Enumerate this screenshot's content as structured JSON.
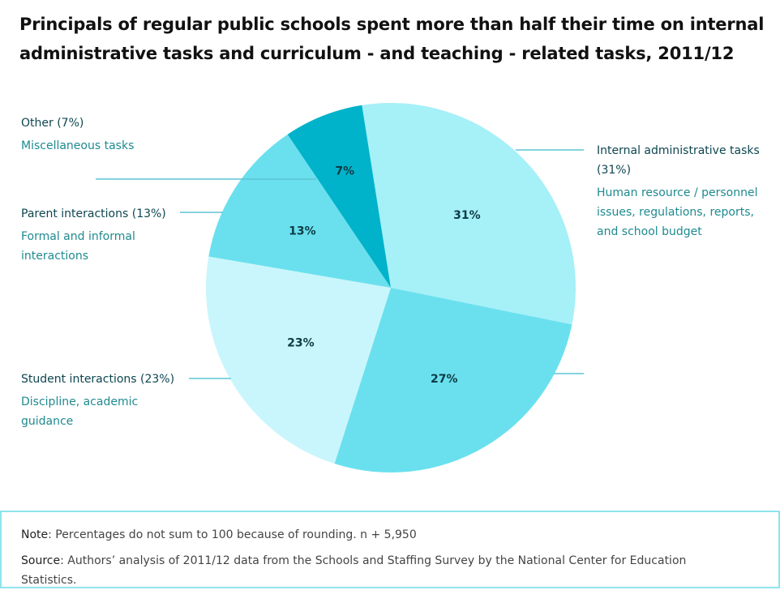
{
  "title": "Principals of regular public schools spent more than half their time on internal administrative tasks and curriculum - and teaching - related tasks, 2011/12",
  "chart_data": {
    "type": "pie",
    "slices": [
      {
        "label": "Internal administrative tasks (31%)",
        "description": "Human resource / personnel issues, regulations, reports, and school budget",
        "value": 31,
        "data_label": "31%",
        "color": "#a6f0f8"
      },
      {
        "label": "",
        "description": "",
        "value": 27,
        "data_label": "27%",
        "color": "#6ae0ee"
      },
      {
        "label": "Student interactions (23%)",
        "description": "Discipline, academic guidance",
        "value": 23,
        "data_label": "23%",
        "color": "#c9f6fc"
      },
      {
        "label": "Parent interactions (13%)",
        "description": "Formal and informal interactions",
        "value": 13,
        "data_label": "13%",
        "color": "#6ae0ee"
      },
      {
        "label": "Other (7%)",
        "description": "Miscellaneous tasks",
        "value": 7,
        "data_label": "7%",
        "color": "#00b3ca"
      }
    ]
  },
  "notes": {
    "note_label": "Note",
    "note_text": ": Percentages do not sum to 100 because of rounding. n + 5,950",
    "source_label": "Source",
    "source_text": ": Authors’ analysis of 2011/12 data from the Schools and Staffing Survey by the National Center for Education Statistics."
  }
}
